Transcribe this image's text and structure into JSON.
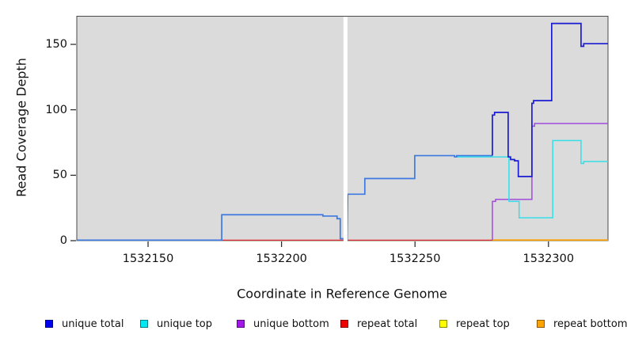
{
  "figure": {
    "xlabel": "Coordinate in Reference Genome",
    "ylabel": "Read Coverage Depth"
  },
  "legend": {
    "items": [
      {
        "label": "unique total",
        "color": "#0000F0"
      },
      {
        "label": "unique top",
        "color": "#00E8F0"
      },
      {
        "label": "unique bottom",
        "color": "#A316E8"
      },
      {
        "label": "repeat total",
        "color": "#EF0000"
      },
      {
        "label": "repeat top",
        "color": "#FFFF00"
      },
      {
        "label": "repeat bottom",
        "color": "#FFA300"
      }
    ]
  },
  "chart_data": {
    "type": "line",
    "title": "",
    "xlabel": "Coordinate in Reference Genome",
    "ylabel": "Read Coverage Depth",
    "xlim": [
      1532123.3,
      1532322.3
    ],
    "ylim": [
      0,
      171.5
    ],
    "xticks": [
      1532150,
      1532200,
      1532250,
      1532300
    ],
    "yticks": [
      0,
      50,
      100,
      150
    ],
    "grid": false,
    "legend_position": "bottom",
    "panel_bg": "#DBDBDB",
    "border_color": "#4A4A4A",
    "mask_region": {
      "x0": 1532223.2,
      "x1": 1532224.7,
      "color": "#FFFFFF"
    },
    "series": [
      {
        "name": "repeat top",
        "color": "#FFFF00",
        "stroke_width": 1.2,
        "points": [
          [
            1532123.3,
            0.3
          ],
          [
            1532322.3,
            0.3
          ]
        ]
      },
      {
        "name": "repeat total",
        "color": "#DC2847",
        "stroke_width": 1.3,
        "points": [
          [
            1532123.3,
            0.4
          ],
          [
            1532322.3,
            0.4
          ]
        ]
      },
      {
        "name": "repeat bottom",
        "color": "#FF9D00",
        "stroke_width": 1.6,
        "points": [
          [
            1532279.0,
            0.5
          ],
          [
            1532322.3,
            0.5
          ]
        ]
      },
      {
        "name": "unique bottom",
        "color": "#A04ADB",
        "stroke_width": 1.5,
        "points": [
          [
            1532279.0,
            0.5
          ],
          [
            1532279.0,
            30
          ],
          [
            1532280.2,
            30
          ],
          [
            1532280.2,
            31.5
          ],
          [
            1532293.8,
            31.5
          ],
          [
            1532293.8,
            87.5
          ],
          [
            1532294.8,
            87.5
          ],
          [
            1532294.8,
            89.5
          ],
          [
            1532322.3,
            89.5
          ]
        ]
      },
      {
        "name": "unique top",
        "color": "#35DEE8",
        "stroke_width": 1.5,
        "points": [
          [
            1532264.8,
            64
          ],
          [
            1532285.2,
            64
          ],
          [
            1532285.2,
            30
          ],
          [
            1532289.0,
            30
          ],
          [
            1532289.0,
            17.5
          ],
          [
            1532301.6,
            17.5
          ],
          [
            1532301.6,
            76.5
          ],
          [
            1532312.2,
            76.5
          ],
          [
            1532312.2,
            59
          ],
          [
            1532313.2,
            59
          ],
          [
            1532313.2,
            60.5
          ],
          [
            1532322.3,
            60.5
          ]
        ]
      },
      {
        "name": "unique total",
        "color": "#3D79E1",
        "color2": "#1B1BD1",
        "split_x": 1532279.0,
        "stroke_width": 1.7,
        "points": [
          [
            1532123.3,
            0.4
          ],
          [
            1532177.6,
            0.4
          ],
          [
            1532177.6,
            19.8
          ],
          [
            1532215.5,
            19.8
          ],
          [
            1532215.5,
            18.8
          ],
          [
            1532220.8,
            18.8
          ],
          [
            1532220.8,
            16.8
          ],
          [
            1532222.0,
            16.8
          ],
          [
            1532222.0,
            1.5
          ],
          [
            1532223.2,
            1.5
          ],
          [
            1532224.6,
            0.4
          ],
          [
            1532224.8,
            35.5
          ],
          [
            1532231.2,
            35.5
          ],
          [
            1532231.2,
            47.5
          ],
          [
            1532249.9,
            47.5
          ],
          [
            1532249.9,
            65
          ],
          [
            1532264.8,
            65
          ],
          [
            1532264.8,
            64
          ],
          [
            1532265.6,
            64
          ],
          [
            1532265.6,
            65
          ],
          [
            1532279.0,
            65
          ],
          [
            1532279.0,
            96
          ],
          [
            1532279.8,
            96
          ],
          [
            1532279.8,
            98
          ],
          [
            1532284.9,
            98
          ],
          [
            1532284.9,
            64
          ],
          [
            1532285.8,
            64
          ],
          [
            1532285.8,
            62
          ],
          [
            1532287.3,
            62
          ],
          [
            1532287.3,
            61
          ],
          [
            1532288.7,
            61
          ],
          [
            1532288.7,
            49
          ],
          [
            1532293.8,
            49
          ],
          [
            1532293.8,
            105
          ],
          [
            1532294.4,
            105
          ],
          [
            1532294.4,
            107
          ],
          [
            1532301.2,
            107
          ],
          [
            1532301.2,
            166
          ],
          [
            1532312.2,
            166
          ],
          [
            1532312.2,
            148.5
          ],
          [
            1532313.2,
            148.5
          ],
          [
            1532313.2,
            150.5
          ],
          [
            1532322.3,
            150.5
          ]
        ]
      }
    ]
  }
}
